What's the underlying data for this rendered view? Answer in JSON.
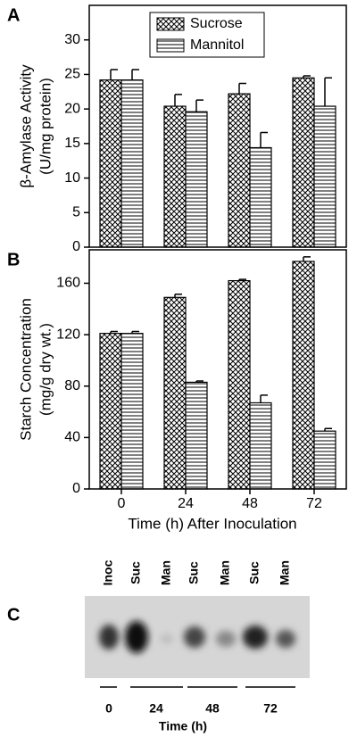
{
  "chart_data": [
    {
      "type": "bar",
      "panel_label": "A",
      "ylabel": [
        "β-Amylase Activity",
        "(U/mg protein)"
      ],
      "categories": [
        "0",
        "24",
        "48",
        "72"
      ],
      "series": [
        {
          "name": "Sucrose",
          "color": "#000000",
          "pattern": "crosshatch",
          "values": [
            24.2,
            20.4,
            22.2,
            24.5
          ],
          "errors": [
            1.5,
            1.7,
            1.5,
            0.3
          ]
        },
        {
          "name": "Mannitol",
          "color": "#000000",
          "pattern": "horizontal",
          "values": [
            24.2,
            19.6,
            14.4,
            20.4
          ],
          "errors": [
            1.5,
            1.7,
            2.2,
            4.1
          ]
        }
      ],
      "ylim": [
        0,
        35
      ],
      "yticks": [
        0,
        5,
        10,
        15,
        20,
        25,
        30
      ],
      "legend": "upper center"
    },
    {
      "type": "bar",
      "panel_label": "B",
      "ylabel": [
        "Starch Concentration",
        "(mg/g dry wt.)"
      ],
      "xlabel": "Time (h) After Inoculation",
      "categories": [
        "0",
        "24",
        "48",
        "72"
      ],
      "series": [
        {
          "name": "Sucrose",
          "color": "#000000",
          "pattern": "crosshatch",
          "values": [
            121,
            149,
            162,
            177
          ],
          "errors": [
            1.5,
            2.5,
            1,
            3.5
          ]
        },
        {
          "name": "Mannitol",
          "color": "#000000",
          "pattern": "horizontal",
          "values": [
            121,
            83,
            67,
            45
          ],
          "errors": [
            1.5,
            1,
            6,
            2
          ]
        }
      ],
      "ylim": [
        0,
        186
      ],
      "yticks": [
        0,
        40,
        80,
        120,
        160
      ]
    }
  ],
  "panel_c": {
    "panel_label": "C",
    "lanes": [
      "Inoc",
      "Suc",
      "Man",
      "Suc",
      "Man",
      "Suc",
      "Man"
    ],
    "times": [
      "0",
      "24",
      "48",
      "72"
    ],
    "xlabel": "Time (h)"
  }
}
